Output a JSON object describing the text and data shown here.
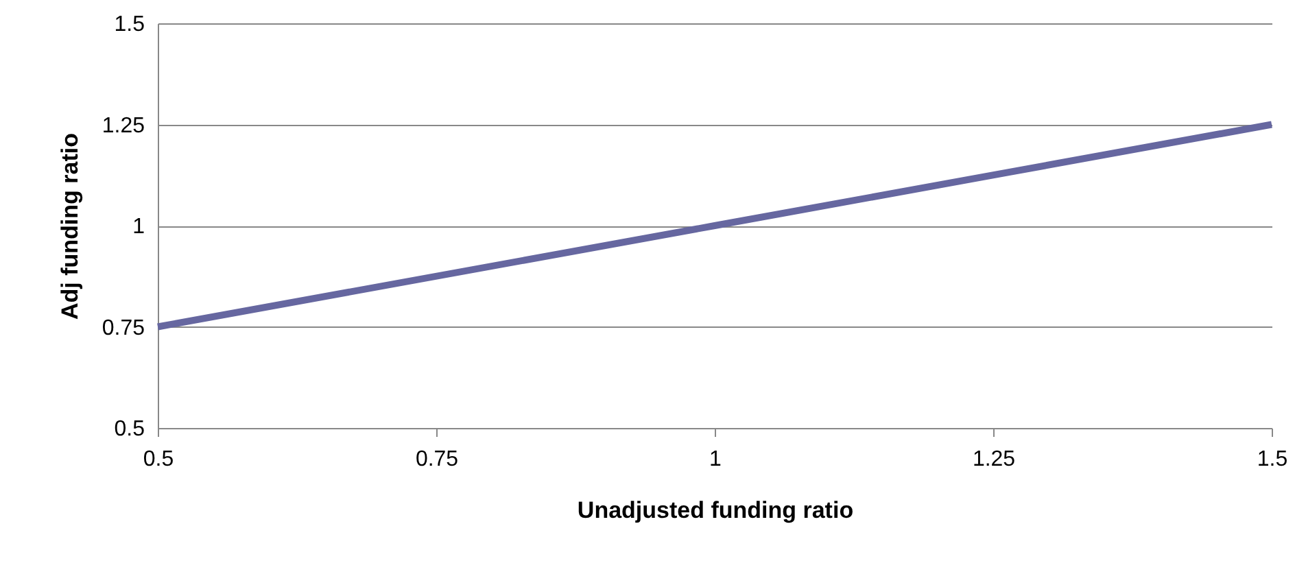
{
  "chart_data": {
    "type": "line",
    "xlabel": "Unadjusted funding ratio",
    "ylabel": "Adj funding ratio",
    "x": [
      0.5,
      1,
      1.5
    ],
    "series": [
      {
        "color": "#6667a0",
        "values": [
          0.75,
          1,
          1.25
        ]
      }
    ],
    "xlim": [
      0.5,
      1.5
    ],
    "xticks": [
      0.5,
      0.75,
      1,
      1.25,
      1.5
    ],
    "ylim": [
      0.5,
      1.5
    ],
    "yticks": [
      0.5,
      0.75,
      1,
      1.25,
      1.5
    ],
    "grid": "y",
    "marker": "none",
    "line_style": "solid"
  }
}
